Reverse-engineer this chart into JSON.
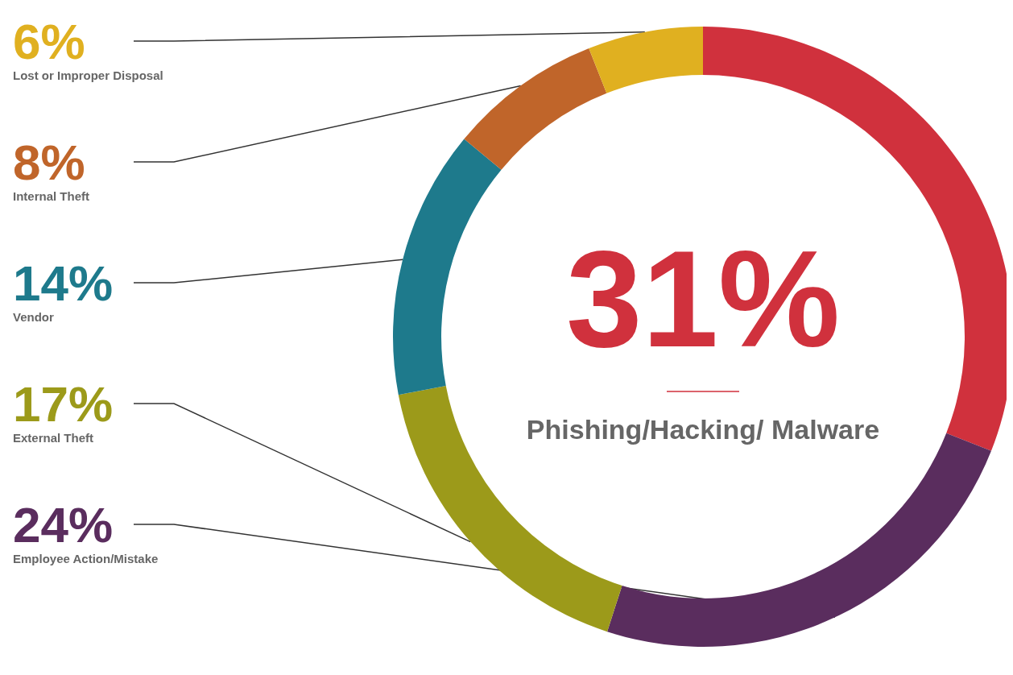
{
  "chart_data": {
    "type": "donut",
    "categories": [
      "Phishing/Hacking/ Malware",
      "Employee Action/Mistake",
      "External Theft",
      "Vendor",
      "Internal Theft",
      "Lost or Improper Disposal"
    ],
    "values": [
      31,
      24,
      17,
      14,
      8,
      6
    ],
    "colors": [
      "#d0313d",
      "#5a2d5e",
      "#9c9a1a",
      "#1e7a8c",
      "#c0652a",
      "#e0b020"
    ],
    "value_labels": [
      "31%",
      "24%",
      "17%",
      "14%",
      "8%",
      "6%"
    ]
  }
}
